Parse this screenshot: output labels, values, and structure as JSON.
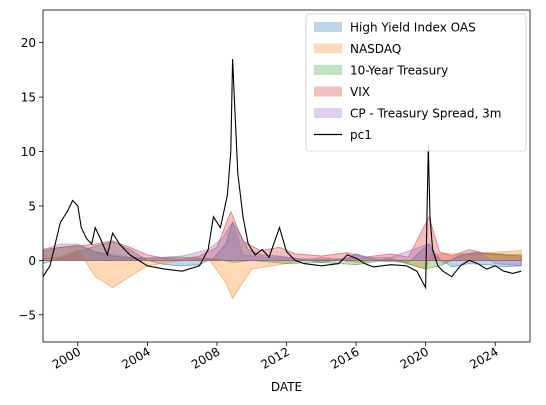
{
  "chart_data": {
    "type": "area",
    "xlabel": "DATE",
    "ylabel": "",
    "title": "",
    "xlim": [
      1998.0,
      2026.0
    ],
    "ylim": [
      -7.5,
      23.0
    ],
    "x_ticks": [
      2000,
      2004,
      2008,
      2012,
      2016,
      2020,
      2024
    ],
    "x_tick_labels": [
      "2000",
      "2004",
      "2008",
      "2012",
      "2016",
      "2020",
      "2024"
    ],
    "y_ticks": [
      -5,
      0,
      5,
      10,
      15,
      20
    ],
    "y_tick_labels": [
      "−5",
      "0",
      "5",
      "10",
      "15",
      "20"
    ],
    "legend_position": "top-right",
    "series": [
      {
        "name": "High Yield Index OAS",
        "kind": "area",
        "color": "#1f77b4",
        "x": [
          1998.0,
          1999.0,
          2000.0,
          2001.0,
          2002.0,
          2003.0,
          2004.0,
          2005.0,
          2006.0,
          2007.0,
          2007.8,
          2008.5,
          2008.9,
          2009.3,
          2009.8,
          2010.5,
          2011.5,
          2012.5,
          2014.0,
          2015.5,
          2016.0,
          2017.5,
          2019.0,
          2020.2,
          2020.5,
          2021.5,
          2022.5,
          2023.5,
          2024.5,
          2025.5
        ],
        "values": [
          -0.3,
          0.2,
          0.8,
          1.3,
          1.7,
          1.0,
          0.0,
          -0.4,
          -0.5,
          -0.4,
          0.2,
          1.5,
          3.5,
          2.5,
          1.0,
          0.5,
          0.4,
          0.2,
          -0.2,
          0.2,
          0.6,
          -0.1,
          -0.2,
          1.5,
          0.5,
          -0.6,
          -0.3,
          -0.4,
          -0.6,
          -0.5
        ]
      },
      {
        "name": "NASDAQ",
        "kind": "area",
        "color": "#ff7f0e",
        "x": [
          1998.0,
          1999.0,
          2000.0,
          2001.0,
          2002.0,
          2003.0,
          2004.0,
          2006.0,
          2007.5,
          2008.5,
          2008.9,
          2009.3,
          2010.0,
          2012.0,
          2014.0,
          2016.0,
          2018.0,
          2020.0,
          2020.3,
          2021.0,
          2022.5,
          2023.5,
          2024.5,
          2025.5
        ],
        "values": [
          0.2,
          0.3,
          1.0,
          -1.5,
          -2.5,
          -1.5,
          -0.5,
          0.0,
          0.2,
          -2.0,
          -3.5,
          -2.5,
          -0.8,
          -0.3,
          0.3,
          -0.2,
          0.2,
          -0.8,
          0.5,
          0.6,
          0.6,
          0.7,
          0.8,
          0.9
        ]
      },
      {
        "name": "10-Year Treasury",
        "kind": "area",
        "color": "#2ca02c",
        "x": [
          1998.0,
          1999.0,
          2000.0,
          2001.0,
          2002.0,
          2003.0,
          2004.0,
          2006.0,
          2008.0,
          2009.0,
          2010.0,
          2012.0,
          2014.0,
          2016.0,
          2018.0,
          2020.0,
          2021.0,
          2022.0,
          2023.0,
          2024.0,
          2025.5
        ],
        "values": [
          0.8,
          1.2,
          1.4,
          0.8,
          0.4,
          0.2,
          0.2,
          0.3,
          0.1,
          -0.2,
          0.0,
          -0.3,
          -0.2,
          -0.4,
          0.1,
          -0.8,
          -0.4,
          0.4,
          0.7,
          0.6,
          0.5
        ]
      },
      {
        "name": "VIX",
        "kind": "area",
        "color": "#d62728",
        "x": [
          1998.0,
          1999.0,
          2000.0,
          2001.0,
          2002.0,
          2003.0,
          2004.0,
          2005.0,
          2006.0,
          2007.0,
          2008.0,
          2008.8,
          2009.5,
          2010.5,
          2011.6,
          2012.5,
          2014.0,
          2015.5,
          2016.5,
          2018.0,
          2019.0,
          2020.2,
          2020.8,
          2021.5,
          2022.5,
          2023.5,
          2024.5,
          2025.5
        ],
        "values": [
          1.0,
          1.2,
          1.3,
          1.5,
          1.8,
          1.2,
          0.5,
          0.2,
          0.1,
          0.4,
          1.2,
          4.5,
          1.8,
          0.9,
          1.2,
          0.6,
          0.4,
          0.7,
          0.3,
          0.6,
          0.3,
          4.0,
          0.8,
          0.4,
          1.0,
          0.6,
          0.5,
          0.4
        ]
      },
      {
        "name": "CP - Treasury Spread, 3m",
        "kind": "area",
        "color": "#9467bd",
        "x": [
          1998.0,
          1999.0,
          2000.0,
          2001.0,
          2002.0,
          2003.0,
          2004.0,
          2006.0,
          2007.5,
          2008.3,
          2008.9,
          2009.5,
          2010.5,
          2012.0,
          2014.0,
          2016.0,
          2018.0,
          2020.2,
          2021.0,
          2022.0,
          2023.0,
          2024.0,
          2025.5
        ],
        "values": [
          1.0,
          1.5,
          1.5,
          0.8,
          0.5,
          0.3,
          0.2,
          0.4,
          1.0,
          2.0,
          3.5,
          0.5,
          0.3,
          0.2,
          0.1,
          0.2,
          0.3,
          1.5,
          -0.3,
          0.5,
          0.8,
          -0.3,
          -0.5
        ]
      },
      {
        "name": "pc1",
        "kind": "line",
        "color": "#000000",
        "x": [
          1998.0,
          1998.4,
          1998.7,
          1999.0,
          1999.4,
          1999.7,
          2000.0,
          2000.2,
          2000.5,
          2000.8,
          2001.0,
          2001.3,
          2001.7,
          2002.0,
          2002.4,
          2002.7,
          2003.0,
          2003.5,
          2004.0,
          2005.0,
          2006.0,
          2007.0,
          2007.5,
          2007.8,
          2008.2,
          2008.6,
          2008.8,
          2008.9,
          2009.0,
          2009.2,
          2009.5,
          2009.8,
          2010.2,
          2010.6,
          2011.0,
          2011.6,
          2012.0,
          2012.5,
          2013.0,
          2014.0,
          2015.0,
          2015.5,
          2016.0,
          2016.5,
          2017.0,
          2018.0,
          2018.9,
          2019.5,
          2020.0,
          2020.15,
          2020.25,
          2020.4,
          2020.7,
          2021.0,
          2021.5,
          2022.0,
          2022.5,
          2023.0,
          2023.5,
          2024.0,
          2024.5,
          2025.0,
          2025.5
        ],
        "values": [
          -1.5,
          -0.5,
          1.5,
          3.5,
          4.5,
          5.5,
          5.0,
          3.0,
          2.0,
          1.5,
          3.0,
          2.0,
          0.5,
          2.5,
          1.5,
          1.0,
          0.5,
          0.0,
          -0.5,
          -0.8,
          -1.0,
          -0.5,
          1.0,
          4.0,
          3.0,
          6.0,
          10.0,
          18.5,
          15.0,
          8.0,
          4.0,
          1.5,
          0.5,
          1.0,
          0.3,
          3.0,
          0.8,
          0.0,
          -0.3,
          -0.5,
          -0.3,
          0.5,
          0.2,
          -0.3,
          -0.6,
          -0.4,
          -0.5,
          -1.0,
          -2.5,
          10.5,
          4.0,
          1.0,
          -0.5,
          -1.0,
          -1.5,
          -0.5,
          0.0,
          -0.3,
          -0.8,
          -0.5,
          -1.0,
          -1.2,
          -1.0
        ]
      }
    ]
  }
}
